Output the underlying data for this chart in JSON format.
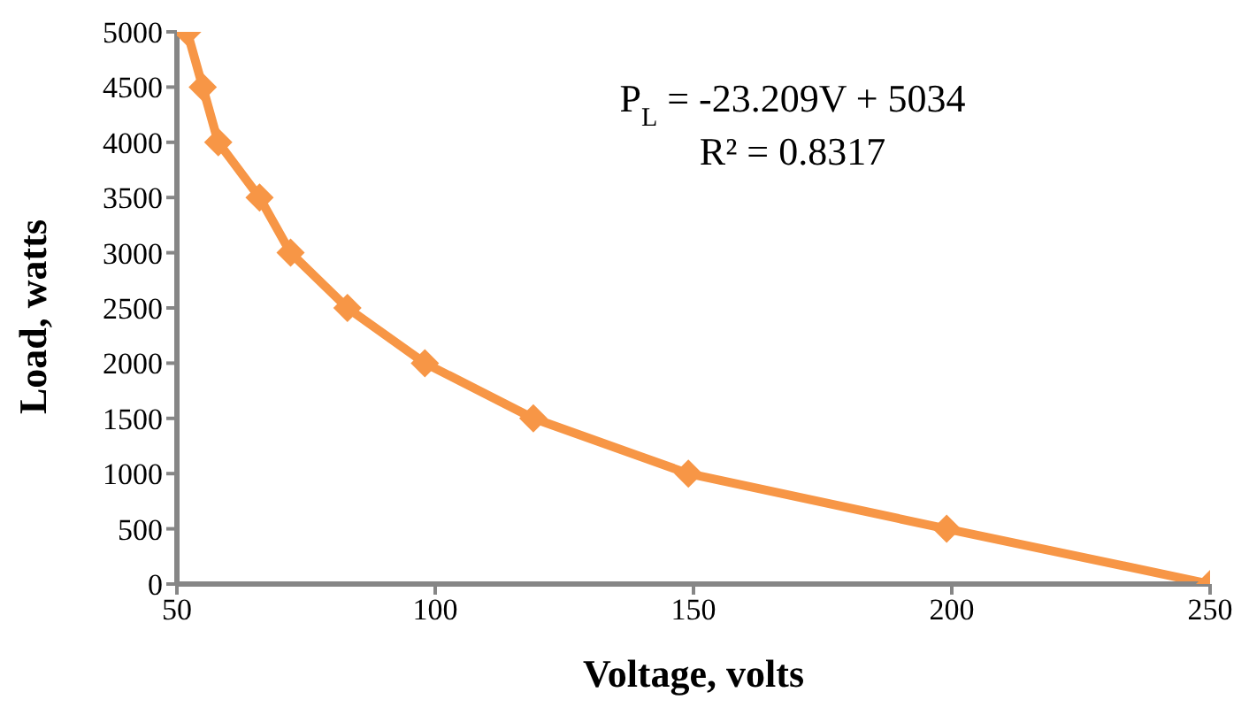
{
  "chart_data": {
    "type": "line",
    "xlabel": "Voltage, volts",
    "ylabel": "Load, watts",
    "x": [
      52,
      55,
      58,
      66,
      72,
      83,
      98,
      119,
      149,
      199,
      250
    ],
    "series": [
      {
        "color": "#f79646",
        "values": [
          5000,
          4500,
          4000,
          3500,
          3000,
          2500,
          2000,
          1500,
          1000,
          500,
          0
        ]
      }
    ],
    "xlim": [
      50,
      250
    ],
    "xticks": [
      50,
      100,
      150,
      200,
      250
    ],
    "ylim": [
      0,
      5000
    ],
    "yticks": [
      0,
      500,
      1000,
      1500,
      2000,
      2500,
      3000,
      3500,
      4000,
      4500,
      5000
    ],
    "grid": false,
    "legend": false,
    "marker": "diamond",
    "line_style": "solid",
    "annotations": [
      "P$_{L}$ = -23.209V + 5034",
      "R² = 0.8317"
    ]
  }
}
